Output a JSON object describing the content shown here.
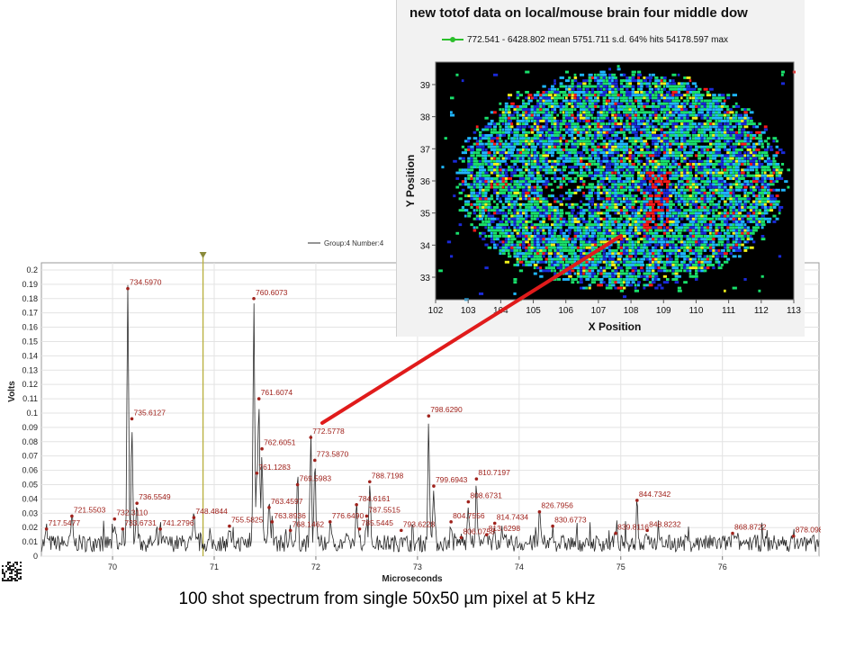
{
  "chart_data": [
    {
      "type": "line",
      "title": "",
      "legend_text": "Group:4 Number:4",
      "legend_position": "top-center",
      "xlabel": "Microseconds",
      "ylabel": "Volts",
      "xlim": [
        69.3,
        76.95
      ],
      "ylim": [
        0,
        0.205
      ],
      "x_ticks": [
        "70",
        "71",
        "72",
        "73",
        "74",
        "75",
        "76"
      ],
      "y_ticks": [
        "0",
        "0.01",
        "0.02",
        "0.03",
        "0.04",
        "0.05",
        "0.06",
        "0.07",
        "0.08",
        "0.09",
        "0.1",
        "0.11",
        "0.12",
        "0.13",
        "0.14",
        "0.15",
        "0.16",
        "0.17",
        "0.18",
        "0.19",
        "0.2"
      ],
      "grid": true,
      "marker_x": 70.89,
      "line_color": "#2b2b2b",
      "label_color": "#a0221c",
      "peaks": [
        {
          "x": 69.35,
          "y": 0.019,
          "label": "717.5477"
        },
        {
          "x": 69.6,
          "y": 0.028,
          "label": "721.5503"
        },
        {
          "x": 70.02,
          "y": 0.026,
          "label": "732.3110"
        },
        {
          "x": 70.1,
          "y": 0.019,
          "label": "733.6731"
        },
        {
          "x": 70.15,
          "y": 0.187,
          "label": "734.5970"
        },
        {
          "x": 70.19,
          "y": 0.096,
          "label": "735.6127"
        },
        {
          "x": 70.24,
          "y": 0.037,
          "label": "736.5549"
        },
        {
          "x": 70.47,
          "y": 0.019,
          "label": "741.2796"
        },
        {
          "x": 70.8,
          "y": 0.027,
          "label": "748.4844"
        },
        {
          "x": 71.15,
          "y": 0.021,
          "label": "755.5825"
        },
        {
          "x": 71.39,
          "y": 0.18,
          "label": "760.6073"
        },
        {
          "x": 71.42,
          "y": 0.058,
          "label": "761.1283"
        },
        {
          "x": 71.44,
          "y": 0.11,
          "label": "761.6074"
        },
        {
          "x": 71.47,
          "y": 0.075,
          "label": "762.6051"
        },
        {
          "x": 71.54,
          "y": 0.034,
          "label": "763.4597"
        },
        {
          "x": 71.57,
          "y": 0.024,
          "label": "763.8936"
        },
        {
          "x": 71.75,
          "y": 0.018,
          "label": "768.1462"
        },
        {
          "x": 71.82,
          "y": 0.05,
          "label": "769.5983"
        },
        {
          "x": 71.95,
          "y": 0.083,
          "label": "772.5778"
        },
        {
          "x": 71.99,
          "y": 0.067,
          "label": "773.5870"
        },
        {
          "x": 72.14,
          "y": 0.024,
          "label": "776.6490"
        },
        {
          "x": 72.4,
          "y": 0.036,
          "label": "784.6161"
        },
        {
          "x": 72.43,
          "y": 0.019,
          "label": "785.5445"
        },
        {
          "x": 72.5,
          "y": 0.028,
          "label": "787.5515"
        },
        {
          "x": 72.53,
          "y": 0.052,
          "label": "788.7198"
        },
        {
          "x": 72.84,
          "y": 0.018,
          "label": "793.6228"
        },
        {
          "x": 73.11,
          "y": 0.098,
          "label": "798.6290"
        },
        {
          "x": 73.16,
          "y": 0.049,
          "label": "799.6943"
        },
        {
          "x": 73.33,
          "y": 0.024,
          "label": "804.7556"
        },
        {
          "x": 73.43,
          "y": 0.013,
          "label": "806.0758"
        },
        {
          "x": 73.5,
          "y": 0.038,
          "label": "808.6731"
        },
        {
          "x": 73.58,
          "y": 0.054,
          "label": "810.7197"
        },
        {
          "x": 73.68,
          "y": 0.015,
          "label": "813.6298"
        },
        {
          "x": 73.76,
          "y": 0.023,
          "label": "814.7434"
        },
        {
          "x": 74.2,
          "y": 0.031,
          "label": "826.7956"
        },
        {
          "x": 74.33,
          "y": 0.021,
          "label": "830.6773"
        },
        {
          "x": 74.95,
          "y": 0.016,
          "label": "839.8116"
        },
        {
          "x": 75.16,
          "y": 0.039,
          "label": "844.7342"
        },
        {
          "x": 75.26,
          "y": 0.018,
          "label": "848.8232"
        },
        {
          "x": 76.1,
          "y": 0.016,
          "label": "868.8722"
        },
        {
          "x": 76.7,
          "y": 0.014,
          "label": "878.098"
        }
      ],
      "baseline_level": 0.009
    },
    {
      "type": "heatmap",
      "title": "new totof data on local/mouse brain four middle dow",
      "legend_text": "772.541 - 6428.802 mean 5751.711 s.d. 64% hits 54178.597 max",
      "legend_color": "#2bbf2b",
      "xlabel": "X Position",
      "ylabel": "Y Position",
      "xlim": [
        102,
        113
      ],
      "ylim": [
        32.3,
        39.7
      ],
      "x_ticks": [
        "102",
        "103",
        "104",
        "105",
        "106",
        "107",
        "108",
        "109",
        "110",
        "111",
        "112",
        "113"
      ],
      "y_ticks": [
        "33",
        "34",
        "35",
        "36",
        "37",
        "38",
        "39"
      ],
      "colormap": [
        "#000000",
        "#1a2ad8",
        "#1fb6ff",
        "#19e06b",
        "#f2f21a",
        "#ff1a1a"
      ],
      "background": "#000000"
    }
  ],
  "arrow": {
    "color": "#e01b1b",
    "from_peak": "772.5778"
  },
  "caption": "100 shot spectrum from single 50x50 µm pixel at 5 kHz"
}
